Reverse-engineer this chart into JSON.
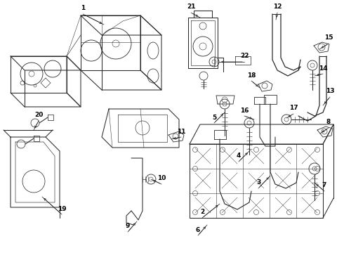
{
  "bg_color": "#ffffff",
  "line_color": "#2a2a2a",
  "label_color": "#000000",
  "fig_width": 4.9,
  "fig_height": 3.6,
  "dpi": 100,
  "lw": 0.75,
  "font_size": 6.5
}
